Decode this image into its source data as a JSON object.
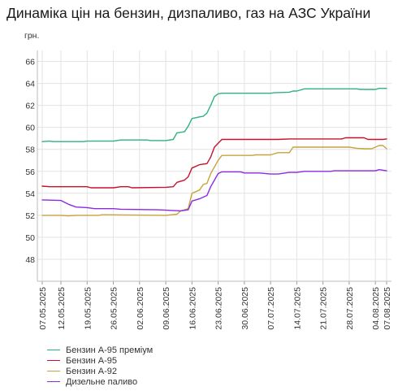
{
  "title": "Динаміка цін на бензин, дизпаливо, газ на АЗС України",
  "chart_data": {
    "type": "line",
    "ylabel": "грн.",
    "xlabel": "",
    "ylim": [
      46,
      67
    ],
    "yticks": [
      48,
      50,
      52,
      54,
      56,
      58,
      60,
      62,
      64,
      66
    ],
    "grid": true,
    "legend_position": "bottom-left",
    "date_start": "2025-05-07",
    "date_end": "2025-08-07",
    "xtick_labels": [
      "07.05.2025",
      "12.05.2025",
      "19.05.2025",
      "26.05.2025",
      "02.06.2025",
      "09.06.2025",
      "16.06.2025",
      "23.06.2025",
      "30.06.2025",
      "07.07.2025",
      "14.07.2025",
      "21.07.2025",
      "28.07.2025",
      "04.08.2025",
      "07.08.2025"
    ],
    "xtick_dates": [
      "2025-05-07",
      "2025-05-12",
      "2025-05-19",
      "2025-05-26",
      "2025-06-02",
      "2025-06-09",
      "2025-06-16",
      "2025-06-23",
      "2025-06-30",
      "2025-07-07",
      "2025-07-14",
      "2025-07-21",
      "2025-07-28",
      "2025-08-04",
      "2025-08-07"
    ],
    "series": [
      {
        "name": "Бензин А-95 преміум",
        "color": "#2db37e",
        "points": [
          [
            "2025-05-07",
            58.7
          ],
          [
            "2025-05-09",
            58.75
          ],
          [
            "2025-05-10",
            58.7
          ],
          [
            "2025-05-18",
            58.7
          ],
          [
            "2025-05-19",
            58.75
          ],
          [
            "2025-05-26",
            58.75
          ],
          [
            "2025-05-28",
            58.85
          ],
          [
            "2025-06-04",
            58.85
          ],
          [
            "2025-06-05",
            58.8
          ],
          [
            "2025-06-09",
            58.8
          ],
          [
            "2025-06-11",
            58.9
          ],
          [
            "2025-06-12",
            59.5
          ],
          [
            "2025-06-14",
            59.6
          ],
          [
            "2025-06-15",
            60.1
          ],
          [
            "2025-06-16",
            60.8
          ],
          [
            "2025-06-18",
            60.95
          ],
          [
            "2025-06-19",
            61.0
          ],
          [
            "2025-06-20",
            61.3
          ],
          [
            "2025-06-21",
            62.0
          ],
          [
            "2025-06-22",
            62.8
          ],
          [
            "2025-06-23",
            63.05
          ],
          [
            "2025-06-24",
            63.1
          ],
          [
            "2025-07-07",
            63.1
          ],
          [
            "2025-07-08",
            63.15
          ],
          [
            "2025-07-12",
            63.2
          ],
          [
            "2025-07-13",
            63.3
          ],
          [
            "2025-07-14",
            63.3
          ],
          [
            "2025-07-16",
            63.5
          ],
          [
            "2025-07-30",
            63.5
          ],
          [
            "2025-07-31",
            63.45
          ],
          [
            "2025-08-04",
            63.45
          ],
          [
            "2025-08-05",
            63.55
          ],
          [
            "2025-08-07",
            63.55
          ]
        ]
      },
      {
        "name": "Бензин А-95",
        "color": "#c8102e",
        "points": [
          [
            "2025-05-07",
            54.65
          ],
          [
            "2025-05-09",
            54.6
          ],
          [
            "2025-05-19",
            54.6
          ],
          [
            "2025-05-20",
            54.5
          ],
          [
            "2025-05-26",
            54.5
          ],
          [
            "2025-05-28",
            54.6
          ],
          [
            "2025-05-30",
            54.6
          ],
          [
            "2025-05-31",
            54.5
          ],
          [
            "2025-06-09",
            54.55
          ],
          [
            "2025-06-11",
            54.6
          ],
          [
            "2025-06-12",
            55.0
          ],
          [
            "2025-06-14",
            55.2
          ],
          [
            "2025-06-15",
            55.5
          ],
          [
            "2025-06-16",
            56.3
          ],
          [
            "2025-06-18",
            56.6
          ],
          [
            "2025-06-20",
            56.7
          ],
          [
            "2025-06-21",
            57.3
          ],
          [
            "2025-06-22",
            58.2
          ],
          [
            "2025-06-24",
            58.9
          ],
          [
            "2025-07-09",
            58.9
          ],
          [
            "2025-07-12",
            58.95
          ],
          [
            "2025-07-26",
            58.95
          ],
          [
            "2025-07-27",
            59.05
          ],
          [
            "2025-08-01",
            59.05
          ],
          [
            "2025-08-02",
            58.9
          ],
          [
            "2025-08-06",
            58.9
          ],
          [
            "2025-08-07",
            58.95
          ]
        ]
      },
      {
        "name": "Бензин А-92",
        "color": "#c8a43c",
        "points": [
          [
            "2025-05-07",
            52.0
          ],
          [
            "2025-05-12",
            52.0
          ],
          [
            "2025-05-14",
            51.95
          ],
          [
            "2025-05-16",
            52.0
          ],
          [
            "2025-05-22",
            52.0
          ],
          [
            "2025-05-23",
            52.05
          ],
          [
            "2025-06-09",
            52.0
          ],
          [
            "2025-06-12",
            52.1
          ],
          [
            "2025-06-13",
            52.4
          ],
          [
            "2025-06-15",
            52.6
          ],
          [
            "2025-06-16",
            54.0
          ],
          [
            "2025-06-18",
            54.3
          ],
          [
            "2025-06-19",
            54.8
          ],
          [
            "2025-06-20",
            54.9
          ],
          [
            "2025-06-21",
            55.8
          ],
          [
            "2025-06-23",
            57.0
          ],
          [
            "2025-06-24",
            57.45
          ],
          [
            "2025-07-02",
            57.45
          ],
          [
            "2025-07-03",
            57.5
          ],
          [
            "2025-07-07",
            57.5
          ],
          [
            "2025-07-09",
            57.7
          ],
          [
            "2025-07-12",
            57.7
          ],
          [
            "2025-07-13",
            58.2
          ],
          [
            "2025-07-28",
            58.2
          ],
          [
            "2025-07-30",
            58.1
          ],
          [
            "2025-08-01",
            58.05
          ],
          [
            "2025-08-03",
            58.05
          ],
          [
            "2025-08-05",
            58.35
          ],
          [
            "2025-08-06",
            58.35
          ],
          [
            "2025-08-07",
            58.05
          ]
        ]
      },
      {
        "name": "Дизельне паливо",
        "color": "#8a2be2",
        "points": [
          [
            "2025-05-07",
            53.4
          ],
          [
            "2025-05-12",
            53.35
          ],
          [
            "2025-05-14",
            53.0
          ],
          [
            "2025-05-16",
            52.75
          ],
          [
            "2025-05-19",
            52.7
          ],
          [
            "2025-05-21",
            52.6
          ],
          [
            "2025-05-26",
            52.6
          ],
          [
            "2025-05-28",
            52.55
          ],
          [
            "2025-06-07",
            52.5
          ],
          [
            "2025-06-13",
            52.4
          ],
          [
            "2025-06-15",
            52.5
          ],
          [
            "2025-06-16",
            53.3
          ],
          [
            "2025-06-18",
            53.5
          ],
          [
            "2025-06-20",
            53.8
          ],
          [
            "2025-06-21",
            54.6
          ],
          [
            "2025-06-23",
            55.8
          ],
          [
            "2025-06-24",
            55.95
          ],
          [
            "2025-06-29",
            55.95
          ],
          [
            "2025-06-30",
            55.85
          ],
          [
            "2025-07-04",
            55.85
          ],
          [
            "2025-07-07",
            55.75
          ],
          [
            "2025-07-09",
            55.75
          ],
          [
            "2025-07-12",
            55.9
          ],
          [
            "2025-07-14",
            55.9
          ],
          [
            "2025-07-16",
            56.0
          ],
          [
            "2025-07-23",
            56.0
          ],
          [
            "2025-07-24",
            56.05
          ],
          [
            "2025-08-04",
            56.05
          ],
          [
            "2025-08-05",
            56.15
          ],
          [
            "2025-08-07",
            56.05
          ]
        ]
      }
    ]
  }
}
